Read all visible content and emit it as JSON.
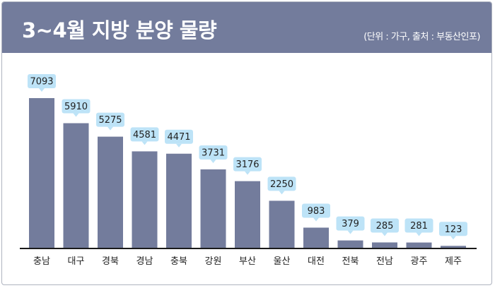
{
  "header": {
    "title": "3~4월 지방 분양 물량",
    "note": "(단위 : 가구, 출처 : 부동산인포)"
  },
  "colors": {
    "header_bg": "#737c9c",
    "bar": "#737c9c",
    "label_bg": "#bde3f7",
    "baseline": "#1a1a1a",
    "text": "#222222"
  },
  "chart_data": {
    "type": "bar",
    "categories": [
      "충남",
      "대구",
      "경북",
      "경남",
      "충북",
      "강원",
      "부산",
      "울산",
      "대전",
      "전북",
      "전남",
      "광주",
      "제주"
    ],
    "values": [
      7093,
      5910,
      5275,
      4581,
      4471,
      3731,
      3176,
      2250,
      983,
      379,
      285,
      281,
      123
    ],
    "title": "3~4월 지방 분양 물량",
    "xlabel": "",
    "ylabel": "",
    "ylim": [
      0,
      7200
    ],
    "grid": false,
    "legend": "none",
    "data_labels": true
  }
}
